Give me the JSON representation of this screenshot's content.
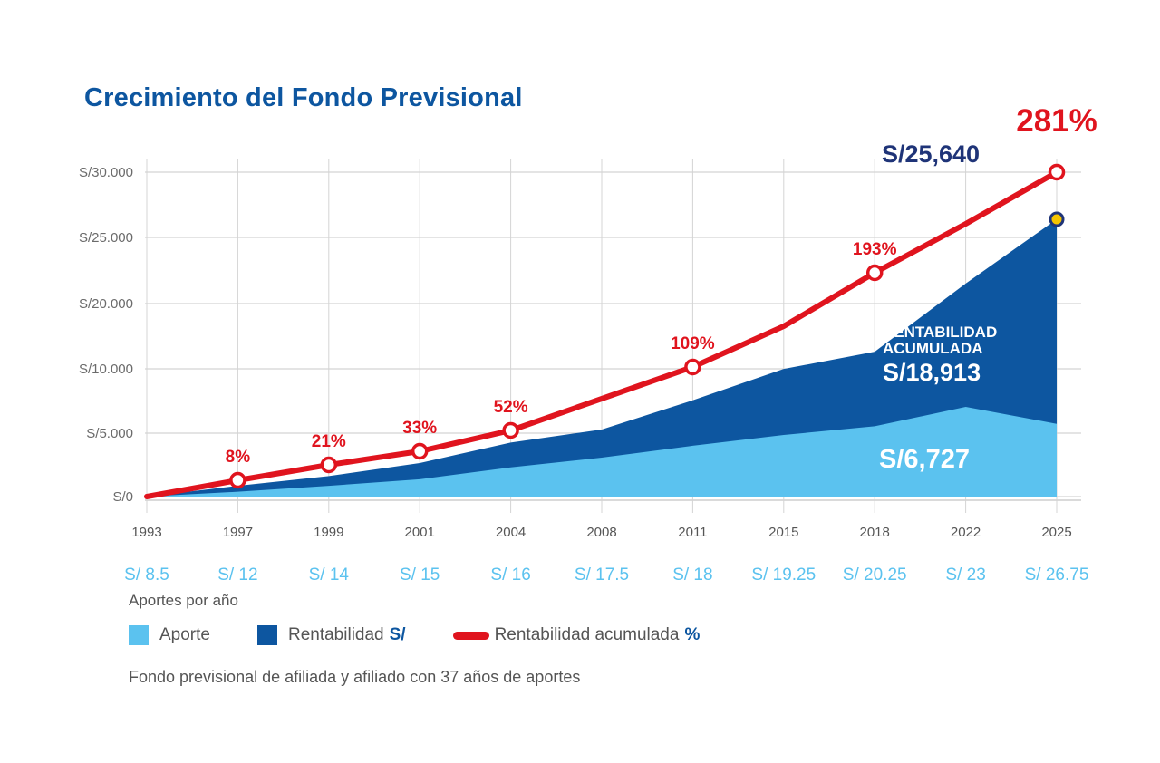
{
  "title": "Crecimiento del Fondo Previsional",
  "chart_data": {
    "type": "area",
    "x": [
      "1993",
      "1997",
      "1999",
      "2001",
      "2004",
      "2008",
      "2011",
      "2015",
      "2018",
      "2022",
      "2025"
    ],
    "contributions": [
      "S/ 8.5",
      "S/ 12",
      "S/ 14",
      "S/ 15",
      "S/ 16",
      "S/ 17.5",
      "S/ 18",
      "S/ 19.25",
      "S/ 20.25",
      "S/ 23",
      "S/ 26.75"
    ],
    "yticks": [
      "S/0",
      "S/5.000",
      "S/10.000",
      "S/20.000",
      "S/25.000",
      "S/30.000"
    ],
    "series": [
      {
        "name": "Aporte",
        "color": "#5bc2ef",
        "values": [
          0,
          450,
          1000,
          1600,
          2700,
          3600,
          4700,
          5700,
          6500,
          8300,
          6727
        ]
      },
      {
        "name": "Rentabilidad S/",
        "color": "#0d56a0",
        "values": [
          0,
          1000,
          1900,
          3100,
          5000,
          6200,
          8900,
          11800,
          13400,
          19700,
          25640
        ]
      },
      {
        "name": "Rentabilidad acumulada %",
        "color": "#e0141e",
        "values": [
          0,
          8,
          21,
          33,
          52,
          75,
          109,
          150,
          193,
          240,
          281
        ]
      }
    ],
    "point_labels": [
      {
        "x": "1997",
        "text": "8%"
      },
      {
        "x": "1999",
        "text": "21%"
      },
      {
        "x": "2001",
        "text": "33%"
      },
      {
        "x": "2004",
        "text": "52%"
      },
      {
        "x": "2011",
        "text": "109%"
      },
      {
        "x": "2018",
        "text": "193%"
      }
    ],
    "annotations": {
      "final_pct": "281%",
      "final_total": "S/25,640",
      "rent_line1": "RENTABILIDAD",
      "rent_line2": "ACUMULADA",
      "rent_value": "S/18,913",
      "aporte_value": "S/6,727"
    }
  },
  "subtitle_contrib": "Aportes por año",
  "legend": {
    "aporte": "Aporte",
    "rentabilidad": "Rentabilidad",
    "rentabilidad_unit": "S/",
    "acumulada": "Rentabilidad acumulada",
    "acumulada_unit": "%"
  },
  "footnote": "Fondo previsional de afiliada y afiliado con 37 años de aportes",
  "colors": {
    "light": "#5bc2ef",
    "dark": "#0d56a0",
    "red": "#e0141e",
    "navy": "#1f3478",
    "yellow": "#f5c400"
  }
}
